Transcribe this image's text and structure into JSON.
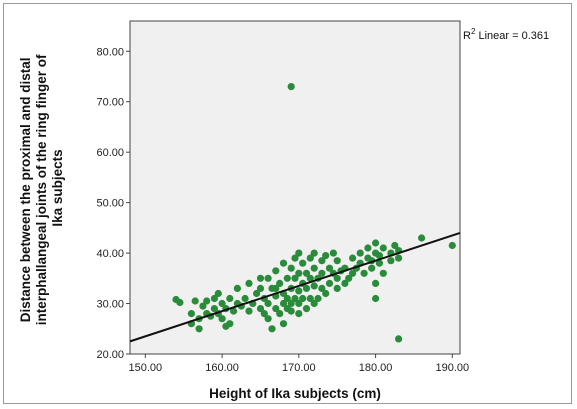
{
  "chart_data": {
    "type": "scatter",
    "xlabel": "Height of Ika subjects (cm)",
    "ylabel_lines": [
      "Distance between the proximal and distal",
      "interphallangeal joints of the ring finger of",
      "Ika subjects"
    ],
    "xlim": [
      148,
      191
    ],
    "ylim": [
      20,
      86
    ],
    "x_ticks": [
      "150.00",
      "160.00",
      "170.00",
      "180.00",
      "190.00"
    ],
    "y_ticks": [
      "20.00",
      "30.00",
      "40.00",
      "50.00",
      "60.00",
      "70.00",
      "80.00"
    ],
    "fit_line": {
      "x": [
        148,
        191
      ],
      "y": [
        22.5,
        44.0
      ]
    },
    "annotation": {
      "r2_prefix": "R",
      "r2_sup": "2",
      "r2_rest": " Linear = 0.361"
    },
    "colors": {
      "point": "#2a8c3a",
      "plot_bg": "#f0f0f0",
      "line": "#111111"
    },
    "points": [
      [
        154,
        30.8
      ],
      [
        154.5,
        30.2
      ],
      [
        156,
        28
      ],
      [
        156,
        26
      ],
      [
        156.5,
        30.5
      ],
      [
        157,
        27
      ],
      [
        157,
        25
      ],
      [
        157.5,
        29.5
      ],
      [
        158,
        28
      ],
      [
        158,
        30.5
      ],
      [
        158.5,
        27.5
      ],
      [
        159,
        29
      ],
      [
        159,
        31
      ],
      [
        159.5,
        28
      ],
      [
        159.5,
        32
      ],
      [
        160,
        27
      ],
      [
        160,
        30
      ],
      [
        160.5,
        29
      ],
      [
        160.5,
        25.5
      ],
      [
        161,
        31
      ],
      [
        161,
        26
      ],
      [
        161.5,
        28.5
      ],
      [
        162,
        30
      ],
      [
        162,
        33
      ],
      [
        162.5,
        29.5
      ],
      [
        163,
        31
      ],
      [
        163.5,
        28.5
      ],
      [
        163.5,
        34
      ],
      [
        164,
        30
      ],
      [
        164.5,
        32
      ],
      [
        165,
        29
      ],
      [
        165,
        33
      ],
      [
        165.5,
        28
      ],
      [
        165.5,
        31
      ],
      [
        166,
        27
      ],
      [
        166,
        30
      ],
      [
        166,
        35
      ],
      [
        166.5,
        33
      ],
      [
        166.5,
        25
      ],
      [
        167,
        29
      ],
      [
        167,
        31.5
      ],
      [
        167,
        36.5
      ],
      [
        167.5,
        28
      ],
      [
        167.5,
        34
      ],
      [
        168,
        30
      ],
      [
        168,
        32
      ],
      [
        168,
        26
      ],
      [
        168,
        38
      ],
      [
        168.5,
        29
      ],
      [
        168.5,
        31
      ],
      [
        168.5,
        35
      ],
      [
        169,
        30
      ],
      [
        169,
        33
      ],
      [
        169,
        28.5
      ],
      [
        169,
        37
      ],
      [
        169.5,
        31
      ],
      [
        169.5,
        35
      ],
      [
        169.5,
        39
      ],
      [
        170,
        30
      ],
      [
        170,
        32.5
      ],
      [
        170,
        36
      ],
      [
        170,
        28
      ],
      [
        170,
        40
      ],
      [
        170.5,
        31
      ],
      [
        170.5,
        34
      ],
      [
        170.5,
        38
      ],
      [
        171,
        29
      ],
      [
        171,
        33
      ],
      [
        171,
        36
      ],
      [
        171.5,
        31
      ],
      [
        171.5,
        35
      ],
      [
        171.5,
        39
      ],
      [
        172,
        30
      ],
      [
        172,
        33.5
      ],
      [
        172,
        37
      ],
      [
        172,
        40
      ],
      [
        172.5,
        31
      ],
      [
        172.5,
        35
      ],
      [
        173,
        33
      ],
      [
        173,
        36
      ],
      [
        173,
        38.5
      ],
      [
        173.5,
        32
      ],
      [
        173.5,
        39.5
      ],
      [
        174,
        34
      ],
      [
        174,
        37
      ],
      [
        174.5,
        36
      ],
      [
        174.5,
        40
      ],
      [
        175,
        33
      ],
      [
        175,
        35
      ],
      [
        175,
        38.5
      ],
      [
        175.5,
        36.5
      ],
      [
        176,
        34
      ],
      [
        176,
        37
      ],
      [
        176.5,
        35
      ],
      [
        177,
        36
      ],
      [
        177,
        39
      ],
      [
        177.5,
        37
      ],
      [
        178,
        38
      ],
      [
        178,
        40
      ],
      [
        178.5,
        36
      ],
      [
        179,
        39
      ],
      [
        179,
        41
      ],
      [
        179.5,
        37
      ],
      [
        179.5,
        38.5
      ],
      [
        180,
        40
      ],
      [
        180,
        42
      ],
      [
        180,
        34
      ],
      [
        180,
        31
      ],
      [
        180.5,
        38
      ],
      [
        180.5,
        39.5
      ],
      [
        181,
        41
      ],
      [
        181,
        36
      ],
      [
        182,
        40
      ],
      [
        182,
        38.5
      ],
      [
        182.5,
        41.5
      ],
      [
        183,
        39
      ],
      [
        183,
        40.5
      ],
      [
        186,
        43
      ],
      [
        190,
        41.5
      ],
      [
        183,
        23
      ],
      [
        169,
        73
      ],
      [
        165,
        35
      ],
      [
        167,
        33
      ]
    ]
  }
}
